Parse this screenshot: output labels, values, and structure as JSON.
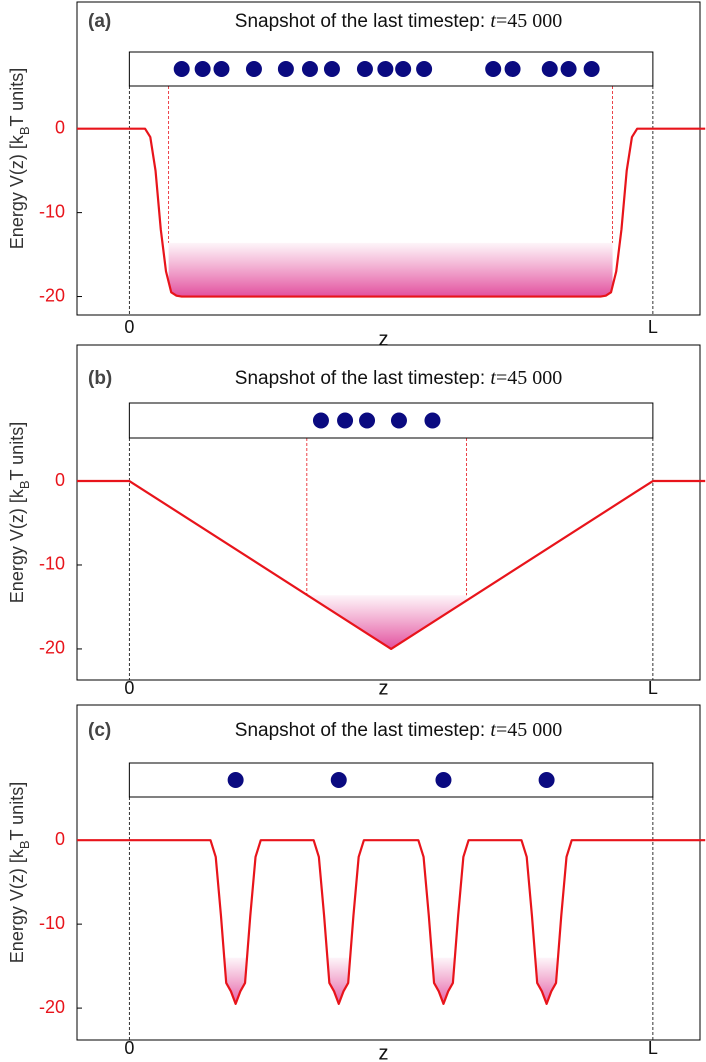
{
  "chart_data": [
    {
      "type": "line",
      "panel_label": "(a)",
      "title": [
        "Snapshot of the last timestep: ",
        "t",
        "=45 000"
      ],
      "ylabel": [
        "Energy V(z) [k",
        "B",
        "T units]"
      ],
      "xlabel": "z",
      "xlim": [
        -0.1,
        1.09
      ],
      "xticks": [
        0,
        {
          "value": 1,
          "label": "L"
        }
      ],
      "ylim": [
        -22.2,
        15.1
      ],
      "yticks": [
        0,
        -10,
        -20
      ],
      "color": "#e8141b",
      "x": [
        -0.1,
        0.03,
        0.04,
        0.05,
        0.06,
        0.07,
        0.08,
        0.09,
        0.1,
        0.9,
        0.91,
        0.92,
        0.93,
        0.94,
        0.95,
        0.96,
        0.97,
        1.1
      ],
      "values": [
        0,
        0,
        -1,
        -5,
        -12,
        -17,
        -19.5,
        -19.9,
        -20,
        -20,
        -19.9,
        -19.5,
        -17,
        -12,
        -5,
        -1,
        0,
        0
      ],
      "particles": [
        0.1,
        0.14,
        0.176,
        0.238,
        0.299,
        0.345,
        0.387,
        0.45,
        0.489,
        0.523,
        0.563,
        0.695,
        0.732,
        0.803,
        0.839,
        0.883
      ],
      "shade_level": -13.6,
      "shade_zlim": [
        0.075,
        0.923
      ]
    },
    {
      "type": "line",
      "panel_label": "(b)",
      "title": [
        "Snapshot of the last timestep: ",
        "t",
        "=45 000"
      ],
      "ylabel": [
        "Energy V(z) [k",
        "B",
        "T units]"
      ],
      "xlabel": "z",
      "xlim": [
        -0.1,
        1.09
      ],
      "xticks": [
        0,
        {
          "value": 1,
          "label": "L"
        }
      ],
      "ylim": [
        -23.7,
        16.2
      ],
      "yticks": [
        0,
        -10,
        -20
      ],
      "color": "#e8141b",
      "x": [
        -0.1,
        0,
        0.5,
        1,
        1.1
      ],
      "values": [
        0,
        0,
        -20,
        0,
        0
      ],
      "particles": [
        0.366,
        0.412,
        0.454,
        0.515,
        0.579
      ],
      "shade_level": -13.6,
      "shade_zlim": [
        0.339,
        0.644
      ]
    },
    {
      "type": "line",
      "panel_label": "(c)",
      "title": [
        "Snapshot of the last timestep: ",
        "t",
        "=45 000"
      ],
      "ylabel": [
        "Energy V(z) [k",
        "B",
        "T units]"
      ],
      "xlabel": "z",
      "xlim": [
        -0.1,
        1.09
      ],
      "xticks": [
        0,
        {
          "value": 1,
          "label": "L"
        }
      ],
      "ylim": [
        -23.8,
        16.1
      ],
      "yticks": [
        0,
        -10,
        -20
      ],
      "color": "#e8141b",
      "x": [
        -0.1,
        0.155,
        0.165,
        0.175,
        0.185,
        0.194,
        0.203,
        0.212,
        0.221,
        0.231,
        0.241,
        0.251,
        0.352,
        0.362,
        0.372,
        0.382,
        0.391,
        0.4,
        0.409,
        0.418,
        0.428,
        0.438,
        0.448,
        0.552,
        0.562,
        0.572,
        0.582,
        0.591,
        0.6,
        0.609,
        0.618,
        0.628,
        0.638,
        0.648,
        0.749,
        0.759,
        0.769,
        0.779,
        0.788,
        0.797,
        0.806,
        0.815,
        0.825,
        0.835,
        0.845,
        1.1
      ],
      "values": [
        0,
        0,
        -2,
        -9,
        -17,
        -18,
        -19.5,
        -18,
        -17,
        -9,
        -2,
        0,
        0,
        -2,
        -9,
        -17,
        -18,
        -19.5,
        -18,
        -17,
        -9,
        -2,
        0,
        0,
        -2,
        -9,
        -17,
        -18,
        -19.5,
        -18,
        -17,
        -9,
        -2,
        0,
        0,
        -2,
        -9,
        -17,
        -18,
        -19.5,
        -18,
        -17,
        -9,
        -2,
        0,
        0
      ],
      "particles": [
        0.203,
        0.4,
        0.6,
        0.797
      ],
      "shade_level": -14
    }
  ]
}
